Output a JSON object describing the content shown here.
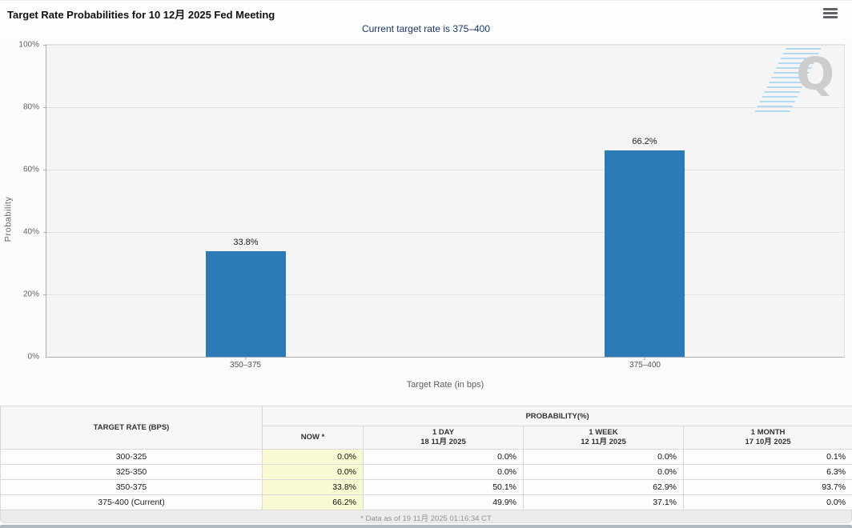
{
  "header": {
    "title": "Target Rate Probabilities for 10 12月 2025 Fed Meeting",
    "menu_icon": "hamburger-menu-icon"
  },
  "subtitle": "Current target rate is 375–400",
  "chart_data": {
    "type": "bar",
    "title": "Target Rate Probabilities for 10 12月 2025 Fed Meeting",
    "subtitle": "Current target rate is 375–400",
    "categories": [
      "350–375",
      "375–400"
    ],
    "values": [
      33.8,
      66.2
    ],
    "value_labels": [
      "33.8%",
      "66.2%"
    ],
    "xlabel": "Target Rate (in bps)",
    "ylabel": "Probability",
    "ylim": [
      0,
      100
    ],
    "yticks": [
      "0%",
      "20%",
      "40%",
      "60%",
      "80%",
      "100%"
    ],
    "grid": "horizontal dotted, on",
    "legend": "none",
    "bar_color": "#2c7bb6",
    "watermark_letter": "Q"
  },
  "table": {
    "now_column_bg": "#fafad2",
    "col_headers": {
      "target_rate": "TARGET RATE (BPS)",
      "probability": "PROBABILITY(%)",
      "now": "NOW *",
      "day_label": "1 DAY",
      "day_date": "18 11月 2025",
      "week_label": "1 WEEK",
      "week_date": "12 11月 2025",
      "month_label": "1 MONTH",
      "month_date": "17 10月 2025"
    },
    "rows": [
      {
        "rate": "300-325",
        "now": "0.0%",
        "day": "0.0%",
        "week": "0.0%",
        "month": "0.1%"
      },
      {
        "rate": "325-350",
        "now": "0.0%",
        "day": "0.0%",
        "week": "0.0%",
        "month": "6.3%"
      },
      {
        "rate": "350-375",
        "now": "33.8%",
        "day": "50.1%",
        "week": "62.9%",
        "month": "93.7%"
      },
      {
        "rate": "375-400 (Current)",
        "now": "66.2%",
        "day": "49.9%",
        "week": "37.1%",
        "month": "0.0%"
      }
    ]
  },
  "footer": {
    "note": "* Data as of 19 11月 2025 01:16:34 CT"
  }
}
